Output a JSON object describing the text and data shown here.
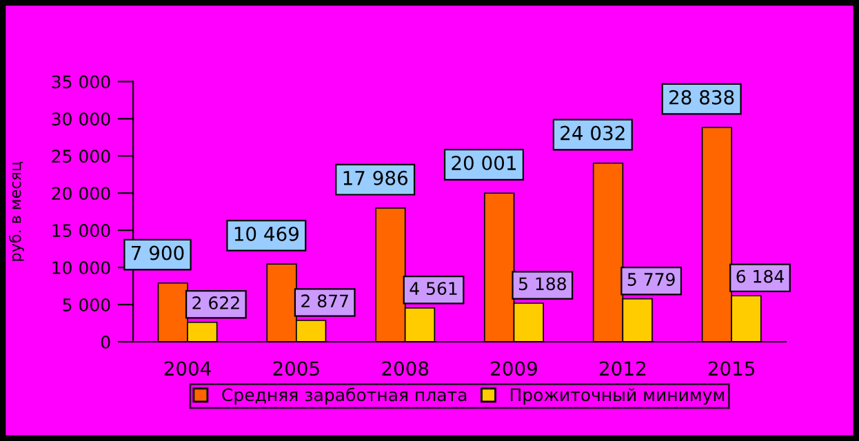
{
  "chart_data": {
    "type": "bar",
    "ylabel": "руб. в месяц",
    "categories": [
      "2004",
      "2005",
      "2008",
      "2009",
      "2012",
      "2015"
    ],
    "series": [
      {
        "name": "Средняя заработная плата",
        "color": "#ff6600",
        "values": [
          7900,
          10469,
          17986,
          20001,
          24032,
          28838
        ],
        "value_labels": [
          "7 900",
          "10 469",
          "17 986",
          "20 001",
          "24 032",
          "28 838"
        ]
      },
      {
        "name": "Прожиточный минимум",
        "color": "#ffcc00",
        "values": [
          2622,
          2877,
          4561,
          5188,
          5779,
          6184
        ],
        "value_labels": [
          "2 622",
          "2 877",
          "4 561",
          "5 188",
          "5 779",
          "6 184"
        ]
      }
    ],
    "ylim": [
      0,
      35000
    ],
    "yticks": [
      {
        "value": 0,
        "label": "0"
      },
      {
        "value": 5000,
        "label": "5 000"
      },
      {
        "value": 10000,
        "label": "10 000"
      },
      {
        "value": 15000,
        "label": "15 000"
      },
      {
        "value": 20000,
        "label": "20 000"
      },
      {
        "value": 25000,
        "label": "25 000"
      },
      {
        "value": 30000,
        "label": "30 000"
      },
      {
        "value": 35000,
        "label": "35 000"
      }
    ],
    "grid": false,
    "legend": "bottom"
  }
}
